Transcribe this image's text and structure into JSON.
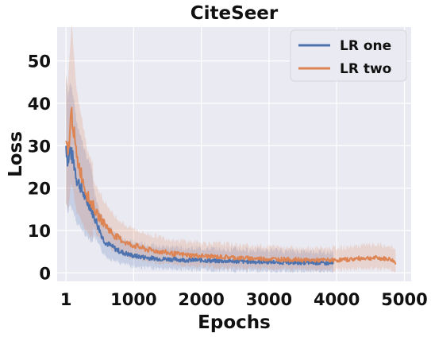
{
  "chart_data": {
    "type": "line",
    "title": "CiteSeer",
    "xlabel": "Epochs",
    "ylabel": "Loss",
    "xlim": [
      -130,
      5100
    ],
    "ylim": [
      -2,
      58
    ],
    "xticks": [
      1,
      1000,
      2000,
      3000,
      4000,
      5000
    ],
    "yticks": [
      0,
      10,
      20,
      30,
      40,
      50
    ],
    "grid": true,
    "legend_position": "top-right",
    "series": [
      {
        "name": "LR one",
        "color": "#4c72b0",
        "x": [
          1,
          30,
          60,
          100,
          130,
          160,
          200,
          250,
          300,
          350,
          400,
          450,
          500,
          550,
          600,
          700,
          800,
          900,
          1000,
          1200,
          1400,
          1600,
          1800,
          2000,
          2200,
          2400,
          2600,
          2800,
          3000,
          3200,
          3400,
          3600,
          3800,
          3950
        ],
        "y": [
          30,
          26,
          29,
          27,
          25,
          22,
          21,
          19,
          17,
          16,
          14,
          12,
          10,
          8,
          7,
          6,
          5,
          4.5,
          4,
          3.6,
          3.3,
          3.2,
          3.0,
          3.0,
          2.8,
          2.8,
          2.7,
          2.6,
          2.6,
          2.5,
          2.4,
          2.4,
          2.3,
          2.2
        ]
      },
      {
        "name": "LR two",
        "color": "#dd8452",
        "x": [
          1,
          30,
          60,
          80,
          100,
          130,
          160,
          200,
          250,
          300,
          350,
          400,
          450,
          500,
          550,
          600,
          700,
          800,
          900,
          1000,
          1200,
          1400,
          1600,
          1800,
          2000,
          2200,
          2400,
          2600,
          2800,
          3000,
          3200,
          3400,
          3600,
          3800,
          4000,
          4200,
          4400,
          4600,
          4800,
          4870
        ],
        "y": [
          30,
          28,
          34,
          38,
          36,
          31,
          27,
          25,
          22,
          19,
          17,
          16,
          14,
          13,
          12,
          11,
          9,
          8,
          7,
          6.5,
          5.5,
          5,
          4.5,
          4.2,
          4,
          3.8,
          3.7,
          3.5,
          3.4,
          3.3,
          3.2,
          3.1,
          3.0,
          3.0,
          3.0,
          3.2,
          3.5,
          3.5,
          3.2,
          2.4
        ]
      }
    ]
  }
}
